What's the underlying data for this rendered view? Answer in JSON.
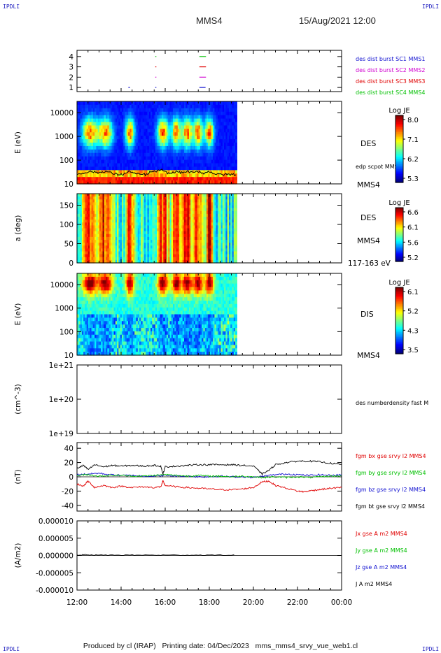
{
  "header": {
    "corner_label": "IPDLI",
    "spacecraft": "MMS4",
    "datetime": "15/Aug/2021 12:00"
  },
  "footer": {
    "text": "Produced by cl (IRAP)   Printing date: 04/Dec/2023   mms_mms4_srvy_vue_web1.cl"
  },
  "colors": {
    "mms1": "#1010d0",
    "mms2": "#d000d0",
    "mms3": "#e00000",
    "mms4": "#00c000",
    "bx": "#e00000",
    "by": "#00c000",
    "bz": "#1010d0",
    "bt": "#000000"
  },
  "chart_data": [
    {
      "type": "scatter",
      "panel": "burst-availability",
      "yticks": [
        "1",
        "2",
        "3",
        "4"
      ],
      "ylim": [
        0.6,
        4.6
      ],
      "series": [
        {
          "name": "des dist burst SC1 MMS1",
          "y": 1,
          "intervals": [
            [
              14.33,
              14.4
            ],
            [
              15.55,
              15.58
            ],
            [
              17.55,
              17.83
            ]
          ]
        },
        {
          "name": "des dist burst SC2 MMS2",
          "y": 2,
          "intervals": [
            [
              15.55,
              15.58
            ],
            [
              17.55,
              17.85
            ]
          ]
        },
        {
          "name": "des dist burst SC3 MMS3",
          "y": 3,
          "intervals": [
            [
              15.55,
              15.58
            ],
            [
              17.55,
              17.85
            ]
          ]
        },
        {
          "name": "des dist burst SC4 MMS4",
          "y": 4,
          "intervals": [
            [
              15.55,
              15.58
            ],
            [
              17.55,
              17.85
            ]
          ]
        }
      ]
    },
    {
      "type": "heatmap",
      "panel": "des-energy",
      "ylabel": "E (eV)",
      "yscale": "log",
      "yticks": [
        "10",
        "100",
        "1000",
        "10000"
      ],
      "ylim": [
        10,
        30000
      ],
      "data_end_hour": 19.25,
      "instrument": "DES",
      "overlay_label": "edp scpot MMS4",
      "probe_label": "MMS4",
      "colorbar": {
        "title": "Log JE",
        "ticks": [
          "8.0",
          "7.1",
          "6.2",
          "5.3"
        ],
        "range": [
          5.3,
          8.0
        ]
      }
    },
    {
      "type": "heatmap",
      "panel": "des-pitch-angle",
      "ylabel": "a (deg)",
      "yticks": [
        "0",
        "50",
        "100",
        "150"
      ],
      "ylim": [
        0,
        180
      ],
      "data_end_hour": 19.25,
      "instrument": "DES",
      "probe_label": "MMS4",
      "energy_band": "117-163 eV",
      "colorbar": {
        "title": "Log JE",
        "ticks": [
          "6.6",
          "6.1",
          "5.6",
          "5.2"
        ],
        "range": [
          5.2,
          6.6
        ]
      }
    },
    {
      "type": "heatmap",
      "panel": "dis-energy",
      "ylabel": "E (eV)",
      "yscale": "log",
      "yticks": [
        "10",
        "100",
        "1000",
        "10000"
      ],
      "ylim": [
        10,
        30000
      ],
      "data_end_hour": 19.25,
      "instrument": "DIS",
      "probe_label": "MMS4",
      "colorbar": {
        "title": "Log JE",
        "ticks": [
          "6.1",
          "5.2",
          "4.3",
          "3.5"
        ],
        "range": [
          3.5,
          6.1
        ]
      }
    },
    {
      "type": "line",
      "panel": "density",
      "ylabel": "(cm^-3)",
      "yscale": "log",
      "yticks": [
        "1e+19",
        "1e+20",
        "1e+21"
      ],
      "ylim": [
        1e+19,
        1e+21
      ],
      "series": [
        {
          "name": "des numberdensity fast M",
          "values": []
        }
      ]
    },
    {
      "type": "line",
      "panel": "magnetic-field",
      "ylabel": "(nT)",
      "yticks": [
        "-40",
        "-20",
        "0",
        "20",
        "40"
      ],
      "ylim": [
        -48,
        48
      ],
      "series": [
        {
          "name": "fgm bx gse srvy l2 MMS4",
          "key": "bx",
          "points": [
            [
              12.0,
              -10
            ],
            [
              12.3,
              -13
            ],
            [
              12.5,
              -6
            ],
            [
              12.8,
              -15
            ],
            [
              13.2,
              -12
            ],
            [
              13.6,
              -15
            ],
            [
              14.0,
              -13
            ],
            [
              14.5,
              -15
            ],
            [
              15.0,
              -14
            ],
            [
              15.5,
              -15
            ],
            [
              15.8,
              -14
            ],
            [
              15.9,
              -6
            ],
            [
              16.0,
              -12
            ],
            [
              16.5,
              -14
            ],
            [
              17.0,
              -15
            ],
            [
              17.5,
              -16
            ],
            [
              18.0,
              -17
            ],
            [
              18.5,
              -18
            ],
            [
              19.0,
              -18
            ],
            [
              19.5,
              -17
            ],
            [
              20.0,
              -15
            ],
            [
              20.4,
              -7
            ],
            [
              20.7,
              -6
            ],
            [
              21.0,
              -12
            ],
            [
              21.5,
              -16
            ],
            [
              22.0,
              -20
            ],
            [
              22.3,
              -21
            ],
            [
              22.7,
              -19
            ],
            [
              23.0,
              -18
            ],
            [
              23.5,
              -16
            ],
            [
              24.0,
              -15
            ]
          ]
        },
        {
          "name": "fgm by gse srvy l2 MMS4",
          "key": "by",
          "points": [
            [
              12.0,
              2
            ],
            [
              12.5,
              3
            ],
            [
              13.0,
              1
            ],
            [
              13.5,
              2
            ],
            [
              14.0,
              2
            ],
            [
              14.5,
              1
            ],
            [
              15.0,
              1
            ],
            [
              15.5,
              2
            ],
            [
              16.0,
              3
            ],
            [
              16.5,
              2
            ],
            [
              17.0,
              1
            ],
            [
              17.5,
              2
            ],
            [
              18.0,
              1
            ],
            [
              18.5,
              1
            ],
            [
              19.0,
              0
            ],
            [
              19.5,
              1
            ],
            [
              20.0,
              0
            ],
            [
              20.5,
              -1
            ],
            [
              21.0,
              0
            ],
            [
              21.5,
              -1
            ],
            [
              22.0,
              0
            ],
            [
              22.5,
              -1
            ],
            [
              23.0,
              0
            ],
            [
              23.5,
              1
            ],
            [
              24.0,
              1
            ]
          ]
        },
        {
          "name": "fgm bz gse srvy l2 MMS4",
          "key": "bz",
          "points": [
            [
              12.0,
              3
            ],
            [
              12.5,
              4
            ],
            [
              13.0,
              5
            ],
            [
              13.5,
              3
            ],
            [
              14.0,
              2
            ],
            [
              14.5,
              2
            ],
            [
              15.0,
              1
            ],
            [
              15.5,
              1
            ],
            [
              16.0,
              2
            ],
            [
              16.5,
              1
            ],
            [
              17.0,
              1
            ],
            [
              17.5,
              0
            ],
            [
              18.0,
              0
            ],
            [
              18.5,
              1
            ],
            [
              19.0,
              0
            ],
            [
              19.5,
              0
            ],
            [
              20.0,
              -1
            ],
            [
              20.5,
              1
            ],
            [
              21.0,
              3
            ],
            [
              21.5,
              4
            ],
            [
              22.0,
              3
            ],
            [
              22.5,
              2
            ],
            [
              23.0,
              3
            ],
            [
              23.5,
              2
            ],
            [
              24.0,
              3
            ]
          ]
        },
        {
          "name": "fgm bt gse srvy l2 MMS4",
          "key": "bt",
          "points": [
            [
              12.0,
              12
            ],
            [
              12.3,
              16
            ],
            [
              12.5,
              10
            ],
            [
              12.8,
              17
            ],
            [
              13.2,
              14
            ],
            [
              13.6,
              16
            ],
            [
              14.0,
              15
            ],
            [
              14.5,
              16
            ],
            [
              15.0,
              15
            ],
            [
              15.5,
              16
            ],
            [
              15.8,
              15
            ],
            [
              15.9,
              4
            ],
            [
              16.0,
              14
            ],
            [
              16.5,
              15
            ],
            [
              17.0,
              16
            ],
            [
              17.5,
              17
            ],
            [
              18.0,
              17
            ],
            [
              18.5,
              17
            ],
            [
              19.0,
              17
            ],
            [
              19.5,
              16
            ],
            [
              20.0,
              15
            ],
            [
              20.4,
              4
            ],
            [
              20.7,
              9
            ],
            [
              21.0,
              17
            ],
            [
              21.5,
              20
            ],
            [
              22.0,
              22
            ],
            [
              22.5,
              22
            ],
            [
              23.0,
              21
            ],
            [
              23.5,
              19
            ],
            [
              24.0,
              17
            ]
          ]
        }
      ]
    },
    {
      "type": "line",
      "panel": "current-density",
      "ylabel": "(A/m2)",
      "yticks": [
        "-0.000010",
        "-0.000005",
        "0.000000",
        "0.000005",
        "0.000010"
      ],
      "ylim": [
        -1e-05,
        1e-05
      ],
      "x": [
        "12:00",
        "14:00",
        "16:00",
        "18:00",
        "20:00",
        "22:00",
        "00:00"
      ],
      "series": [
        {
          "name": "Jx gse A m2 MMS4",
          "key": "bx"
        },
        {
          "name": "Jy gse A m2 MMS4",
          "key": "by"
        },
        {
          "name": "Jz gse A m2 MMS4",
          "key": "bz"
        },
        {
          "name": "J A m2 MMS4",
          "key": "bt",
          "points": [
            [
              12.0,
              0
            ],
            [
              12.3,
              2e-07
            ],
            [
              13.0,
              1e-07
            ],
            [
              14.0,
              1e-07
            ],
            [
              15.0,
              1e-07
            ],
            [
              16.0,
              1e-07
            ],
            [
              17.0,
              1e-07
            ],
            [
              18.0,
              1e-07
            ],
            [
              19.25,
              1e-07
            ]
          ]
        }
      ]
    }
  ]
}
